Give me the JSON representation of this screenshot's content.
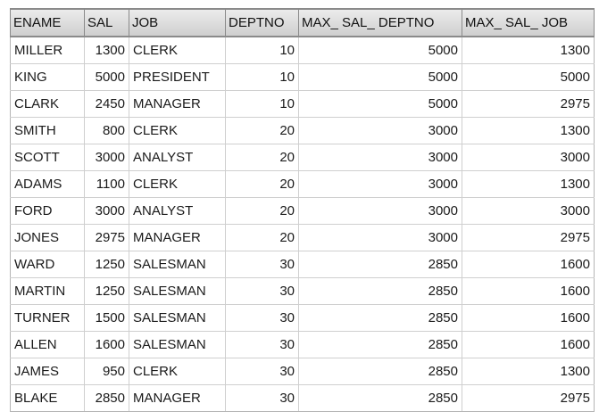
{
  "grid": {
    "columns": [
      "ENAME",
      "SAL",
      "JOB",
      "DEPTNO",
      "MAX_ SAL_ DEPTNO",
      "MAX_ SAL_ JOB"
    ],
    "rows": [
      [
        "MILLER",
        "1300",
        "CLERK",
        "10",
        "5000",
        "1300"
      ],
      [
        "KING",
        "5000",
        "PRESIDENT",
        "10",
        "5000",
        "5000"
      ],
      [
        "CLARK",
        "2450",
        "MANAGER",
        "10",
        "5000",
        "2975"
      ],
      [
        "SMITH",
        "800",
        "CLERK",
        "20",
        "3000",
        "1300"
      ],
      [
        "SCOTT",
        "3000",
        "ANALYST",
        "20",
        "3000",
        "3000"
      ],
      [
        "ADAMS",
        "1100",
        "CLERK",
        "20",
        "3000",
        "1300"
      ],
      [
        "FORD",
        "3000",
        "ANALYST",
        "20",
        "3000",
        "3000"
      ],
      [
        "JONES",
        "2975",
        "MANAGER",
        "20",
        "3000",
        "2975"
      ],
      [
        "WARD",
        "1250",
        "SALESMAN",
        "30",
        "2850",
        "1600"
      ],
      [
        "MARTIN",
        "1250",
        "SALESMAN",
        "30",
        "2850",
        "1600"
      ],
      [
        "TURNER",
        "1500",
        "SALESMAN",
        "30",
        "2850",
        "1600"
      ],
      [
        "ALLEN",
        "1600",
        "SALESMAN",
        "30",
        "2850",
        "1600"
      ],
      [
        "JAMES",
        "950",
        "CLERK",
        "30",
        "2850",
        "1300"
      ],
      [
        "BLAKE",
        "2850",
        "MANAGER",
        "30",
        "2850",
        "2975"
      ]
    ]
  }
}
